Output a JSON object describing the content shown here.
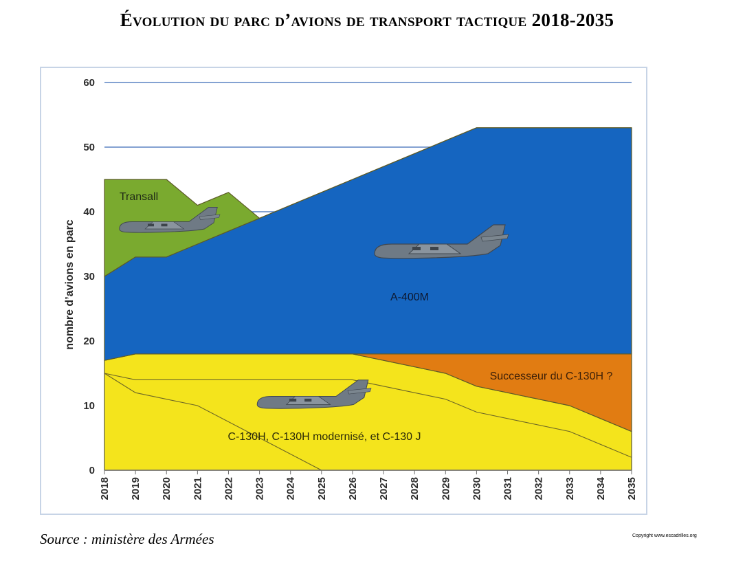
{
  "page": {
    "title_initial": "É",
    "title_rest": "volution du parc d’avions de transport tactique",
    "title_years": "2018-2035",
    "source": "Source : ministère des Armées",
    "copyright": "Copyright www.escadrilles.org"
  },
  "chart_data": {
    "type": "area",
    "stacked": true,
    "title": "Évolution du parc d’avions de transport tactique 2018-2035",
    "xlabel": "",
    "ylabel": "nombre d’avions en parc",
    "x": [
      "2018",
      "2019",
      "2020",
      "2021",
      "2022",
      "2023",
      "2024",
      "2025",
      "2026",
      "2027",
      "2028",
      "2029",
      "2030",
      "2031",
      "2032",
      "2033",
      "2034",
      "2035"
    ],
    "ylim": [
      0,
      60
    ],
    "yticks": [
      0,
      10,
      20,
      30,
      40,
      50,
      60
    ],
    "grid": true,
    "series": [
      {
        "name": "C-130H, C-130H modernisé, et C-130 J",
        "color": "#f4e41c",
        "values": [
          17,
          18,
          18,
          18,
          18,
          18,
          18,
          18,
          18,
          17,
          16,
          15,
          13,
          12,
          11,
          10,
          8,
          6
        ]
      },
      {
        "name": "Successeur du C-130H ?",
        "color": "#e17c12",
        "values": [
          0,
          0,
          0,
          0,
          0,
          0,
          0,
          0,
          0,
          1,
          2,
          3,
          5,
          6,
          7,
          8,
          10,
          12
        ]
      },
      {
        "name": "A-400M",
        "color": "#1565c0",
        "values": [
          13,
          15,
          15,
          17,
          19,
          21,
          23,
          25,
          27,
          29,
          31,
          33,
          35,
          35,
          35,
          35,
          35,
          35
        ]
      },
      {
        "name": "Transall",
        "color": "#7aaa2f",
        "values": [
          15,
          12,
          12,
          6,
          6,
          0,
          0,
          0,
          0,
          0,
          0,
          0,
          0,
          0,
          0,
          0,
          0,
          0
        ]
      }
    ],
    "annotations": [
      "Transall",
      "A-400M",
      "Successeur du C-130H ?",
      "C-130H, C-130H modernisé, et C-130 J"
    ]
  }
}
